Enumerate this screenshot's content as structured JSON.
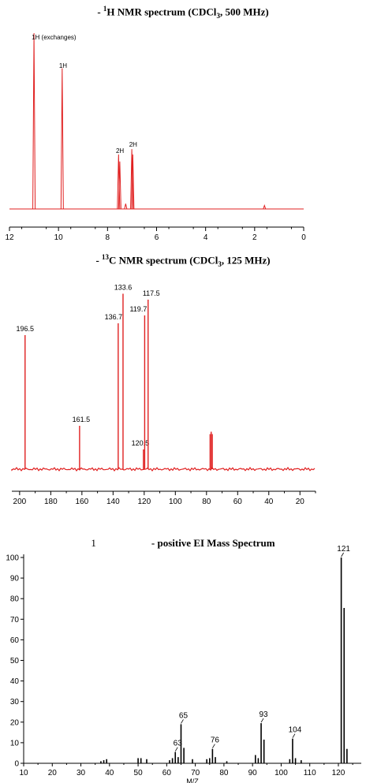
{
  "chart_data": [
    {
      "type": "line",
      "title": {
        "prefix": "- ",
        "sup": "1",
        "main": "H NMR spectrum (CDCl",
        "sub": "3",
        "suffix": ", 500 MHz)"
      },
      "xlabel": "",
      "ylabel": "",
      "xlim": [
        12,
        0
      ],
      "x_reversed": true,
      "x_ticks": [
        12,
        10,
        8,
        6,
        4,
        2,
        0
      ],
      "color": "#e02020",
      "peaks": [
        {
          "x": 11.0,
          "height": 1.0
        },
        {
          "x": 9.85,
          "height": 0.8
        },
        {
          "x": 7.55,
          "height": 0.31
        },
        {
          "x": 7.5,
          "height": 0.27
        },
        {
          "x": 7.01,
          "height": 0.34
        },
        {
          "x": 6.97,
          "height": 0.31
        },
        {
          "x": 7.26,
          "height": 0.03
        },
        {
          "x": 1.6,
          "height": 0.02
        }
      ],
      "annotations": [
        {
          "text": "1H (exchanges)",
          "x": 11.0
        },
        {
          "text": "1H",
          "x": 9.85
        },
        {
          "text": "2H",
          "x": 7.53
        },
        {
          "text": "2H",
          "x": 6.99
        }
      ]
    },
    {
      "type": "bar",
      "title": {
        "prefix": "- ",
        "sup": "13",
        "main": "C NMR spectrum (CDCl",
        "sub": "3",
        "suffix": ", 125 MHz)"
      },
      "xlabel": "",
      "ylabel": "",
      "xlim": [
        205,
        10
      ],
      "x_reversed": true,
      "x_ticks": [
        200,
        180,
        160,
        140,
        120,
        100,
        80,
        60,
        40,
        20
      ],
      "color": "#e02020",
      "peaks": [
        {
          "x": 196.5,
          "height": 0.68,
          "label": "196.5"
        },
        {
          "x": 161.5,
          "height": 0.22,
          "label": "161.5"
        },
        {
          "x": 136.7,
          "height": 0.74,
          "label": "136.7"
        },
        {
          "x": 133.6,
          "height": 0.89,
          "label": "133.6"
        },
        {
          "x": 120.5,
          "height": 0.1,
          "label": "120.5"
        },
        {
          "x": 119.7,
          "height": 0.78,
          "label": "119.7"
        },
        {
          "x": 117.5,
          "height": 0.86,
          "label": "117.5"
        },
        {
          "x": 77.0,
          "height": 0.19,
          "label": ""
        }
      ]
    },
    {
      "type": "bar",
      "title": {
        "prefix": "- ",
        "main": "positive EI Mass Spectrum"
      },
      "title_mark": "1",
      "xlabel": "M/Z",
      "ylabel": "",
      "xlim": [
        10,
        128
      ],
      "ylim": [
        0,
        100
      ],
      "x_ticks": [
        10,
        20,
        30,
        40,
        50,
        60,
        70,
        80,
        90,
        100,
        110,
        120
      ],
      "y_ticks": [
        0,
        10,
        20,
        30,
        40,
        50,
        60,
        70,
        80,
        90,
        100
      ],
      "color": "#000000",
      "peaks": [
        {
          "x": 37,
          "y": 1
        },
        {
          "x": 38,
          "y": 1.5
        },
        {
          "x": 39,
          "y": 2
        },
        {
          "x": 50,
          "y": 2.5
        },
        {
          "x": 51,
          "y": 2.5
        },
        {
          "x": 53,
          "y": 2
        },
        {
          "x": 61,
          "y": 1.5
        },
        {
          "x": 62,
          "y": 2.5
        },
        {
          "x": 63,
          "y": 5.5
        },
        {
          "x": 64,
          "y": 3
        },
        {
          "x": 65,
          "y": 19
        },
        {
          "x": 66,
          "y": 7.5
        },
        {
          "x": 69,
          "y": 2
        },
        {
          "x": 74,
          "y": 2
        },
        {
          "x": 75,
          "y": 2.5
        },
        {
          "x": 76,
          "y": 7
        },
        {
          "x": 77,
          "y": 3
        },
        {
          "x": 81,
          "y": 1
        },
        {
          "x": 91,
          "y": 4
        },
        {
          "x": 92,
          "y": 2.5
        },
        {
          "x": 93,
          "y": 19.5
        },
        {
          "x": 94,
          "y": 11.5
        },
        {
          "x": 103,
          "y": 2
        },
        {
          "x": 104,
          "y": 12
        },
        {
          "x": 105,
          "y": 2.5
        },
        {
          "x": 107,
          "y": 1.5
        },
        {
          "x": 121,
          "y": 100
        },
        {
          "x": 122,
          "y": 75.5
        },
        {
          "x": 123,
          "y": 7
        }
      ],
      "peak_labels": [
        {
          "x": 63,
          "y": 5.5,
          "text": "63"
        },
        {
          "x": 65,
          "y": 19,
          "text": "65"
        },
        {
          "x": 76,
          "y": 7,
          "text": "76"
        },
        {
          "x": 93,
          "y": 19.5,
          "text": "93"
        },
        {
          "x": 104,
          "y": 12,
          "text": "104"
        },
        {
          "x": 121,
          "y": 100,
          "text": "121"
        }
      ]
    }
  ]
}
